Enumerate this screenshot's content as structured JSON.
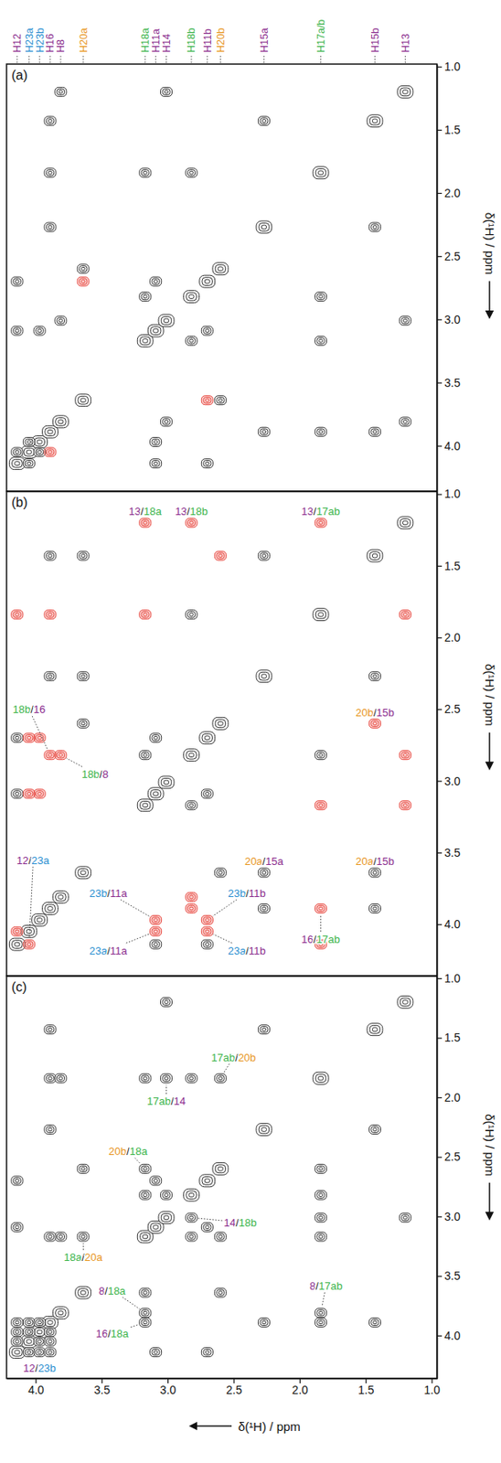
{
  "chart_data": [
    {
      "type": "scatter",
      "title": "(a)",
      "marker": "contour",
      "tick_labels": "y",
      "y_label": "δ(¹H) / ppm",
      "xlim": [
        4.22,
        0.96
      ],
      "ylim": [
        0.98,
        4.36
      ],
      "yticks": [
        {
          "value": 1,
          "label": "1.0"
        },
        1.5,
        {
          "value": 2,
          "label": "2.0"
        },
        2.5,
        {
          "value": 3,
          "label": "3.0"
        },
        3.5,
        {
          "value": 4,
          "label": "4.0"
        }
      ],
      "column_labels": [
        {
          "text": "H12",
          "x": 4.14,
          "color": "#8b2d8e"
        },
        {
          "text": "H23a",
          "x": 4.05,
          "color": "#2b8fd1"
        },
        {
          "text": "H23b",
          "x": 3.97,
          "color": "#2b8fd1"
        },
        {
          "text": "H16",
          "x": 3.89,
          "color": "#8b2d8e"
        },
        {
          "text": "H8",
          "x": 3.81,
          "color": "#8b2d8e"
        },
        {
          "text": "H20a",
          "x": 3.64,
          "color": "#e8961e"
        },
        {
          "text": "H18a",
          "x": 3.17,
          "color": "#3cb44b"
        },
        {
          "text": "H11a",
          "x": 3.09,
          "color": "#8b2d8e"
        },
        {
          "text": "H14",
          "x": 3.01,
          "color": "#8b2d8e"
        },
        {
          "text": "H18b",
          "x": 2.82,
          "color": "#3cb44b"
        },
        {
          "text": "H11b",
          "x": 2.7,
          "color": "#8b2d8e"
        },
        {
          "text": "H20b",
          "x": 2.6,
          "color": "#e8961e"
        },
        {
          "text": "H15a",
          "x": 2.27,
          "color": "#8b2d8e"
        },
        {
          "text": "H17a/b",
          "x": 1.84,
          "color": "#3cb44b"
        },
        {
          "text": "H15b",
          "x": 1.43,
          "color": "#8b2d8e"
        },
        {
          "text": "H13",
          "x": 1.2,
          "color": "#8b2d8e"
        }
      ],
      "series": [
        {
          "color": "#333333",
          "x": [
            4.14,
            4.05,
            3.97,
            3.89,
            3.81,
            3.64,
            3.17,
            3.09,
            3.01,
            2.82,
            2.7,
            2.6,
            2.27,
            1.84,
            1.43,
            1.2,
            4.14,
            4.05,
            4.14,
            3.09,
            4.14,
            2.7,
            4.05,
            3.97,
            3.89,
            2.27,
            3.89,
            1.43,
            3.89,
            1.84,
            3.81,
            1.2,
            3.64,
            2.6,
            3.17,
            1.84,
            2.82,
            1.84,
            3.17,
            2.82,
            3.09,
            2.7,
            3.01,
            1.2,
            2.27,
            1.43,
            3.97,
            3.09,
            3.01,
            3.81
          ],
          "values": [
            4.14,
            4.05,
            3.97,
            3.89,
            3.81,
            3.64,
            3.17,
            3.09,
            3.01,
            2.82,
            2.7,
            2.6,
            2.27,
            1.84,
            1.43,
            1.2,
            4.05,
            4.14,
            3.09,
            4.14,
            2.7,
            4.14,
            3.97,
            4.05,
            2.27,
            3.89,
            1.43,
            3.89,
            1.84,
            3.89,
            1.2,
            3.81,
            2.6,
            3.64,
            1.84,
            3.17,
            1.84,
            2.82,
            2.82,
            3.17,
            2.7,
            3.09,
            1.2,
            3.01,
            1.43,
            2.27,
            3.09,
            3.97,
            3.81,
            3.01
          ]
        },
        {
          "color": "#e8473f",
          "x": [
            3.64,
            2.7,
            3.89
          ],
          "values": [
            2.7,
            3.64,
            4.05
          ]
        }
      ]
    },
    {
      "type": "scatter",
      "title": "(b)",
      "marker": "contour",
      "tick_labels": "y",
      "y_label": "δ(¹H) / ppm",
      "xlim": [
        4.22,
        0.96
      ],
      "ylim": [
        0.98,
        4.36
      ],
      "yticks": [
        {
          "value": 1,
          "label": "1.0"
        },
        1.5,
        {
          "value": 2,
          "label": "2.0"
        },
        2.5,
        {
          "value": 3,
          "label": "3.0"
        },
        3.5,
        {
          "value": 4,
          "label": "4.0"
        }
      ],
      "series": [
        {
          "color": "#333333",
          "x": [
            4.14,
            4.05,
            3.97,
            3.89,
            3.81,
            3.64,
            3.17,
            3.09,
            3.01,
            2.82,
            2.7,
            2.6,
            2.27,
            1.84,
            1.43,
            1.2,
            3.89,
            2.27,
            3.89,
            1.43,
            2.27,
            1.43,
            3.64,
            2.6,
            3.64,
            2.27,
            3.64,
            1.43,
            3.17,
            2.82,
            1.84,
            2.82,
            3.09,
            2.7,
            4.14,
            3.09,
            4.14,
            2.7
          ],
          "values": [
            4.14,
            4.05,
            3.97,
            3.89,
            3.81,
            3.64,
            3.17,
            3.09,
            3.01,
            2.82,
            2.7,
            2.6,
            2.27,
            1.84,
            1.43,
            1.2,
            2.27,
            3.89,
            1.43,
            3.89,
            1.43,
            2.27,
            2.6,
            3.64,
            2.27,
            3.64,
            1.43,
            3.64,
            2.82,
            3.17,
            2.82,
            1.84,
            2.7,
            3.09,
            3.09,
            4.14,
            2.7,
            4.14
          ]
        },
        {
          "color": "#e8473f",
          "x": [
            1.2,
            3.17,
            1.2,
            2.82,
            1.2,
            1.84,
            2.82,
            3.89,
            2.82,
            3.81,
            2.6,
            1.43,
            4.14,
            4.05,
            3.97,
            3.09,
            4.05,
            3.09,
            3.97,
            2.7,
            4.05,
            2.7,
            3.89,
            1.84,
            1.84,
            3.17,
            1.84,
            4.14
          ],
          "values": [
            3.17,
            1.2,
            2.82,
            1.2,
            1.84,
            1.2,
            3.89,
            2.82,
            3.81,
            2.82,
            1.43,
            2.6,
            4.05,
            4.14,
            3.09,
            3.97,
            3.09,
            4.05,
            2.7,
            3.97,
            2.7,
            4.05,
            1.84,
            3.89,
            3.17,
            1.84,
            4.14,
            1.84
          ]
        }
      ],
      "annotations": [
        {
          "parts": [
            "13",
            "/",
            "18a"
          ],
          "colors": [
            "#8b2d8e",
            "#222222",
            "#3cb44b"
          ],
          "x": 3.17,
          "y": 1.2
        },
        {
          "parts": [
            "13",
            "/",
            "18b"
          ],
          "colors": [
            "#8b2d8e",
            "#222222",
            "#3cb44b"
          ],
          "x": 2.82,
          "y": 1.2
        },
        {
          "parts": [
            "13",
            "/",
            "17ab"
          ],
          "colors": [
            "#8b2d8e",
            "#222222",
            "#3cb44b"
          ],
          "x": 1.84,
          "y": 1.2
        },
        {
          "parts": [
            "18b",
            "/",
            "16"
          ],
          "colors": [
            "#3cb44b",
            "#222222",
            "#8b2d8e"
          ],
          "x": 3.89,
          "y": 2.82,
          "text_x": 4.05,
          "text_y": 2.5
        },
        {
          "parts": [
            "18b",
            "/",
            "8"
          ],
          "colors": [
            "#3cb44b",
            "#222222",
            "#8b2d8e"
          ],
          "x": 3.81,
          "y": 2.82,
          "text_x": 3.55,
          "text_y": 2.95
        },
        {
          "parts": [
            "20b",
            "/",
            "15b"
          ],
          "colors": [
            "#e8961e",
            "#222222",
            "#8b2d8e"
          ],
          "x": 1.43,
          "y": 2.6
        },
        {
          "parts": [
            "20a",
            "/",
            "15a"
          ],
          "colors": [
            "#e8961e",
            "#222222",
            "#8b2d8e"
          ],
          "x": 2.27,
          "y": 3.64
        },
        {
          "parts": [
            "20a",
            "/",
            "15b"
          ],
          "colors": [
            "#e8961e",
            "#222222",
            "#8b2d8e"
          ],
          "x": 1.43,
          "y": 3.64
        },
        {
          "parts": [
            "12",
            "/",
            "23a"
          ],
          "colors": [
            "#8b2d8e",
            "#222222",
            "#2b8fd1"
          ],
          "x": 4.05,
          "y": 4.14,
          "text_x": 4.02,
          "text_y": 3.55
        },
        {
          "parts": [
            "23b",
            "/",
            "11a"
          ],
          "colors": [
            "#2b8fd1",
            "#222222",
            "#8b2d8e"
          ],
          "x": 3.09,
          "y": 3.97,
          "text_x": 3.45,
          "text_y": 3.78
        },
        {
          "parts": [
            "23a",
            "/",
            "11a"
          ],
          "colors": [
            "#2b8fd1",
            "#222222",
            "#8b2d8e"
          ],
          "x": 3.09,
          "y": 4.05,
          "text_x": 3.45,
          "text_y": 4.18
        },
        {
          "parts": [
            "23b",
            "/",
            "11b"
          ],
          "colors": [
            "#2b8fd1",
            "#222222",
            "#8b2d8e"
          ],
          "x": 2.7,
          "y": 3.97,
          "text_x": 2.4,
          "text_y": 3.78
        },
        {
          "parts": [
            "23a",
            "/",
            "11b"
          ],
          "colors": [
            "#2b8fd1",
            "#222222",
            "#8b2d8e"
          ],
          "x": 2.7,
          "y": 4.05,
          "text_x": 2.4,
          "text_y": 4.18
        },
        {
          "parts": [
            "16",
            "/",
            "17ab"
          ],
          "colors": [
            "#8b2d8e",
            "#222222",
            "#3cb44b"
          ],
          "x": 1.84,
          "y": 3.89,
          "text_x": 1.84,
          "text_y": 4.1
        }
      ]
    },
    {
      "type": "scatter",
      "title": "(c)",
      "marker": "contour",
      "y_label": "δ(¹H) / ppm",
      "x_label": "δ(¹H) / ppm",
      "xlim": [
        4.22,
        0.96
      ],
      "ylim": [
        0.98,
        4.36
      ],
      "xticks": [
        {
          "value": 4,
          "label": "4.0"
        },
        3.5,
        {
          "value": 3,
          "label": "3.0"
        },
        2.5,
        {
          "value": 2,
          "label": "2.0"
        },
        1.5,
        {
          "value": 1,
          "label": "1.0"
        }
      ],
      "yticks": [
        {
          "value": 1,
          "label": "1.0"
        },
        1.5,
        {
          "value": 2,
          "label": "2.0"
        },
        2.5,
        {
          "value": 3,
          "label": "3.0"
        },
        3.5,
        {
          "value": 4,
          "label": "4.0"
        }
      ],
      "series": [
        {
          "color": "#333333",
          "x": [
            4.14,
            4.05,
            3.97,
            3.89,
            3.81,
            3.64,
            3.17,
            3.09,
            3.01,
            2.82,
            2.7,
            2.6,
            2.27,
            1.84,
            1.43,
            1.2,
            4.14,
            4.05,
            3.97,
            4.14,
            4.14,
            3.89,
            4.05,
            3.97,
            4.05,
            3.89,
            3.97,
            3.89,
            3.89,
            2.27,
            3.89,
            1.43,
            2.27,
            1.43,
            1.84,
            3.17,
            1.84,
            2.82,
            1.84,
            3.89,
            1.84,
            3.81,
            2.6,
            1.84,
            3.01,
            1.84,
            3.17,
            2.82,
            3.09,
            2.7,
            4.14,
            3.09,
            4.14,
            2.7,
            3.64,
            2.6,
            3.17,
            2.6,
            2.82,
            3.01,
            3.64,
            3.17,
            3.17,
            3.81,
            3.17,
            3.89,
            3.01,
            1.2
          ],
          "values": [
            4.14,
            4.05,
            3.97,
            3.89,
            3.81,
            3.64,
            3.17,
            3.09,
            3.01,
            2.82,
            2.7,
            2.6,
            2.27,
            1.84,
            1.43,
            1.2,
            4.05,
            4.14,
            4.14,
            3.97,
            3.89,
            4.14,
            3.97,
            4.05,
            3.89,
            4.05,
            3.89,
            3.97,
            2.27,
            3.89,
            1.43,
            3.89,
            1.43,
            2.27,
            3.17,
            1.84,
            2.82,
            1.84,
            3.89,
            1.84,
            3.81,
            1.84,
            1.84,
            2.6,
            1.84,
            3.01,
            2.82,
            3.17,
            2.7,
            3.09,
            3.09,
            4.14,
            2.7,
            4.14,
            2.6,
            3.64,
            2.6,
            3.17,
            3.01,
            2.82,
            3.17,
            3.64,
            3.81,
            3.17,
            3.89,
            3.17,
            1.2,
            3.01
          ]
        }
      ],
      "annotations": [
        {
          "parts": [
            "17ab",
            "/",
            "20b"
          ],
          "colors": [
            "#3cb44b",
            "#222222",
            "#e8961e"
          ],
          "x": 2.6,
          "y": 1.84,
          "text_x": 2.5,
          "text_y": 1.66
        },
        {
          "parts": [
            "17ab",
            "/",
            "14"
          ],
          "colors": [
            "#3cb44b",
            "#222222",
            "#8b2d8e"
          ],
          "x": 3.01,
          "y": 1.84,
          "text_x": 3.01,
          "text_y": 2.03
        },
        {
          "parts": [
            "20b",
            "/",
            "18a"
          ],
          "colors": [
            "#e8961e",
            "#222222",
            "#3cb44b"
          ],
          "x": 3.17,
          "y": 2.6,
          "text_x": 3.3,
          "text_y": 2.45
        },
        {
          "parts": [
            "14",
            "/",
            "18b"
          ],
          "colors": [
            "#8b2d8e",
            "#222222",
            "#3cb44b"
          ],
          "x": 2.82,
          "y": 3.01,
          "text_x": 2.45,
          "text_y": 3.05
        },
        {
          "parts": [
            "18a",
            "/",
            "20a"
          ],
          "colors": [
            "#3cb44b",
            "#222222",
            "#e8961e"
          ],
          "x": 3.64,
          "y": 3.17,
          "text_x": 3.64,
          "text_y": 3.34
        },
        {
          "parts": [
            "8",
            "/",
            "18a"
          ],
          "colors": [
            "#8b2d8e",
            "#222222",
            "#3cb44b"
          ],
          "x": 3.17,
          "y": 3.81,
          "text_x": 3.42,
          "text_y": 3.62
        },
        {
          "parts": [
            "16",
            "/",
            "18a"
          ],
          "colors": [
            "#8b2d8e",
            "#222222",
            "#3cb44b"
          ],
          "x": 3.17,
          "y": 3.89,
          "text_x": 3.42,
          "text_y": 3.98
        },
        {
          "parts": [
            "8",
            "/",
            "17ab"
          ],
          "colors": [
            "#8b2d8e",
            "#222222",
            "#3cb44b"
          ],
          "x": 1.84,
          "y": 3.81,
          "text_x": 1.8,
          "text_y": 3.58
        },
        {
          "parts": [
            "12",
            "/",
            "23b"
          ],
          "colors": [
            "#8b2d8e",
            "#222222",
            "#2b8fd1"
          ],
          "x": 3.97,
          "y": 4.14,
          "text_x": 3.97,
          "text_y": 4.27
        }
      ]
    }
  ]
}
